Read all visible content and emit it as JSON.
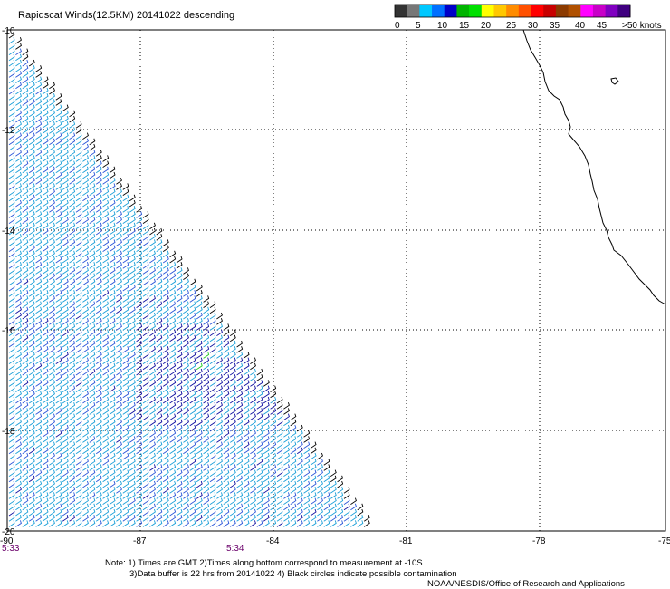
{
  "title": "Rapidscat Winds(12.5KM) 20141022 descending",
  "legend": {
    "swatch_colors": [
      "#333333",
      "#777777",
      "#00c8ff",
      "#0070ff",
      "#0000c8",
      "#00b400",
      "#00e000",
      "#ffff00",
      "#ffc800",
      "#ff8c00",
      "#ff5000",
      "#ff0000",
      "#c80000",
      "#8b3a00",
      "#b05000",
      "#ff00ff",
      "#c800c8",
      "#8000c0",
      "#400080"
    ],
    "labels": [
      "0",
      "5",
      "10",
      "15",
      "20",
      "25",
      "30",
      "35",
      "40",
      "45",
      ">50 knots"
    ]
  },
  "axes": {
    "lat_labels": [
      "-10",
      "-12",
      "-14",
      "-16",
      "-18",
      "-20"
    ],
    "lon_labels": [
      "-90",
      "-87",
      "-84",
      "-81",
      "-78",
      "-75"
    ]
  },
  "times": [
    "5:33",
    "5:34"
  ],
  "notes": [
    "Note: 1) Times are GMT 2)Times along bottom correspond to measurement at -10S",
    "3)Data buffer is 22 hrs from 20141022 4) Black circles indicate possible contamination",
    "NOAA/NESDIS/Office of Research and Applications"
  ],
  "colors": {
    "wind_light": "#1a9fd8",
    "wind_mid": "#2a55d8",
    "wind_dark": "#1010a0",
    "wind_green": "#22cc22",
    "contamination": "#000000",
    "coast": "#000000"
  }
}
